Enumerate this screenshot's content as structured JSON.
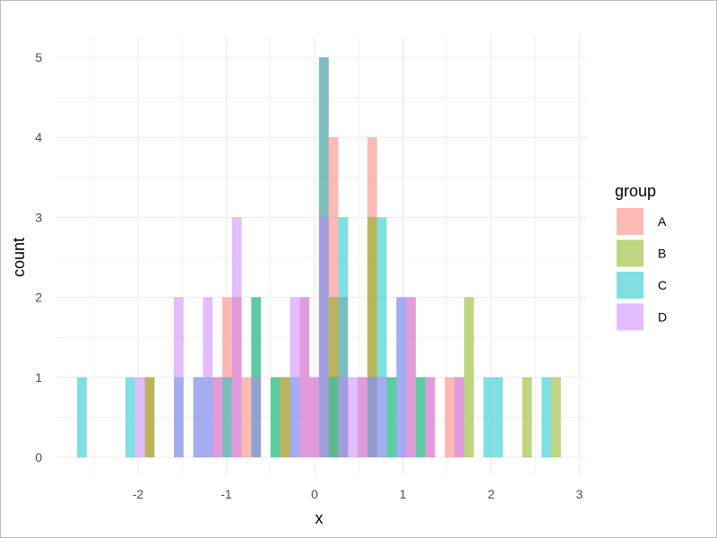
{
  "chart_data": {
    "type": "histogram",
    "title": "",
    "xlabel": "x",
    "ylabel": "count",
    "xlim": [
      -2.8,
      3.05
    ],
    "ylim": [
      -0.2,
      5.3
    ],
    "x_ticks": [
      "-2",
      "-1",
      "0",
      "1",
      "2",
      "3"
    ],
    "x_tick_values": [
      -2,
      -1,
      0,
      1,
      2,
      3
    ],
    "y_ticks": [
      "0",
      "1",
      "2",
      "3",
      "4",
      "5"
    ],
    "y_tick_values": [
      0,
      1,
      2,
      3,
      4,
      5
    ],
    "grid": true,
    "bins": {
      "start": -2.69,
      "width": 0.1096,
      "count": 50
    },
    "opacity": 0.5,
    "legend": {
      "title": "group",
      "placement": "right"
    },
    "series": [
      {
        "name": "A",
        "color": "#F8766D",
        "counts": [
          0,
          0,
          0,
          0,
          0,
          0,
          0,
          1,
          0,
          0,
          0,
          0,
          0,
          0,
          1,
          2,
          2,
          1,
          0,
          0,
          0,
          1,
          0,
          2,
          1,
          5,
          4,
          2,
          0,
          1,
          4,
          0,
          0,
          0,
          2,
          0,
          1,
          0,
          1,
          1,
          0,
          0,
          0,
          0,
          0,
          0,
          0,
          0,
          0,
          0
        ]
      },
      {
        "name": "B",
        "color": "#7CAE00",
        "counts": [
          0,
          0,
          0,
          0,
          0,
          0,
          0,
          1,
          0,
          0,
          0,
          0,
          0,
          0,
          0,
          0,
          0,
          0,
          2,
          0,
          1,
          1,
          0,
          0,
          0,
          0,
          2,
          0,
          0,
          0,
          3,
          0,
          1,
          0,
          0,
          1,
          0,
          0,
          0,
          0,
          2,
          0,
          0,
          0,
          0,
          0,
          1,
          0,
          0,
          1
        ]
      },
      {
        "name": "C",
        "color": "#00BFC4",
        "counts": [
          1,
          0,
          0,
          0,
          0,
          1,
          0,
          0,
          0,
          0,
          1,
          0,
          1,
          1,
          0,
          1,
          0,
          0,
          2,
          0,
          1,
          0,
          1,
          0,
          0,
          5,
          1,
          3,
          0,
          0,
          1,
          3,
          1,
          2,
          0,
          1,
          0,
          0,
          0,
          0,
          0,
          0,
          1,
          1,
          0,
          0,
          0,
          0,
          1,
          0
        ]
      },
      {
        "name": "D",
        "color": "#C77CFF",
        "counts": [
          0,
          0,
          0,
          0,
          0,
          0,
          1,
          0,
          0,
          0,
          2,
          0,
          1,
          2,
          1,
          0,
          3,
          0,
          1,
          0,
          0,
          0,
          2,
          2,
          1,
          3,
          0,
          1,
          1,
          1,
          1,
          1,
          0,
          2,
          2,
          0,
          1,
          0,
          0,
          1,
          0,
          0,
          0,
          0,
          0,
          0,
          0,
          0,
          0,
          0
        ]
      }
    ]
  }
}
